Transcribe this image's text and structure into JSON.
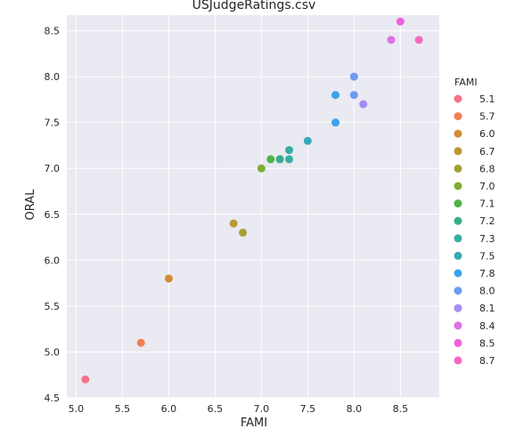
{
  "chart_data": {
    "type": "scatter",
    "title": "USJudgeRatings.csv",
    "xlabel": "FAMI",
    "ylabel": "ORAL",
    "xlim": [
      4.9,
      8.92
    ],
    "ylim": [
      4.5,
      8.67
    ],
    "xticks": [
      "5.0",
      "5.5",
      "6.0",
      "6.5",
      "7.0",
      "7.5",
      "8.0",
      "8.5"
    ],
    "yticks": [
      "4.5",
      "5.0",
      "5.5",
      "6.0",
      "6.5",
      "7.0",
      "7.5",
      "8.0",
      "8.5"
    ],
    "grid": true,
    "background": "#eaeaf2",
    "legend": {
      "title": "FAMI",
      "placement": "right",
      "entries": [
        {
          "label": "5.1",
          "color": "#f77189"
        },
        {
          "label": "5.7",
          "color": "#f27f50"
        },
        {
          "label": "6.0",
          "color": "#d58c32"
        },
        {
          "label": "6.7",
          "color": "#bb9832"
        },
        {
          "label": "6.8",
          "color": "#a4a031"
        },
        {
          "label": "7.0",
          "color": "#7fad31"
        },
        {
          "label": "7.1",
          "color": "#4fb446"
        },
        {
          "label": "7.2",
          "color": "#35ae8b"
        },
        {
          "label": "7.3",
          "color": "#36ada4"
        },
        {
          "label": "7.5",
          "color": "#38a9b9"
        },
        {
          "label": "7.8",
          "color": "#3ba3ec"
        },
        {
          "label": "8.0",
          "color": "#6e9af4"
        },
        {
          "label": "8.1",
          "color": "#a48cf4"
        },
        {
          "label": "8.4",
          "color": "#dc71ea"
        },
        {
          "label": "8.5",
          "color": "#f161dd"
        },
        {
          "label": "8.7",
          "color": "#f668c2"
        }
      ]
    },
    "points": [
      {
        "x": 5.1,
        "y": 4.7,
        "group": "5.1"
      },
      {
        "x": 5.7,
        "y": 5.1,
        "group": "5.7"
      },
      {
        "x": 6.0,
        "y": 5.8,
        "group": "6.0"
      },
      {
        "x": 6.7,
        "y": 6.4,
        "group": "6.7"
      },
      {
        "x": 6.8,
        "y": 6.3,
        "group": "6.8"
      },
      {
        "x": 7.0,
        "y": 7.0,
        "group": "7.0"
      },
      {
        "x": 7.1,
        "y": 7.1,
        "group": "7.1"
      },
      {
        "x": 7.2,
        "y": 7.1,
        "group": "7.2"
      },
      {
        "x": 7.2,
        "y": 7.1,
        "group": "7.2"
      },
      {
        "x": 7.3,
        "y": 7.1,
        "group": "7.3"
      },
      {
        "x": 7.3,
        "y": 7.2,
        "group": "7.3"
      },
      {
        "x": 7.5,
        "y": 7.3,
        "group": "7.5"
      },
      {
        "x": 7.8,
        "y": 7.5,
        "group": "7.8"
      },
      {
        "x": 7.8,
        "y": 7.8,
        "group": "7.8"
      },
      {
        "x": 8.0,
        "y": 7.8,
        "group": "8.0"
      },
      {
        "x": 8.0,
        "y": 8.0,
        "group": "8.0"
      },
      {
        "x": 8.1,
        "y": 7.7,
        "group": "8.1"
      },
      {
        "x": 8.4,
        "y": 8.4,
        "group": "8.4"
      },
      {
        "x": 8.5,
        "y": 8.6,
        "group": "8.5"
      },
      {
        "x": 8.7,
        "y": 8.4,
        "group": "8.7"
      }
    ]
  }
}
